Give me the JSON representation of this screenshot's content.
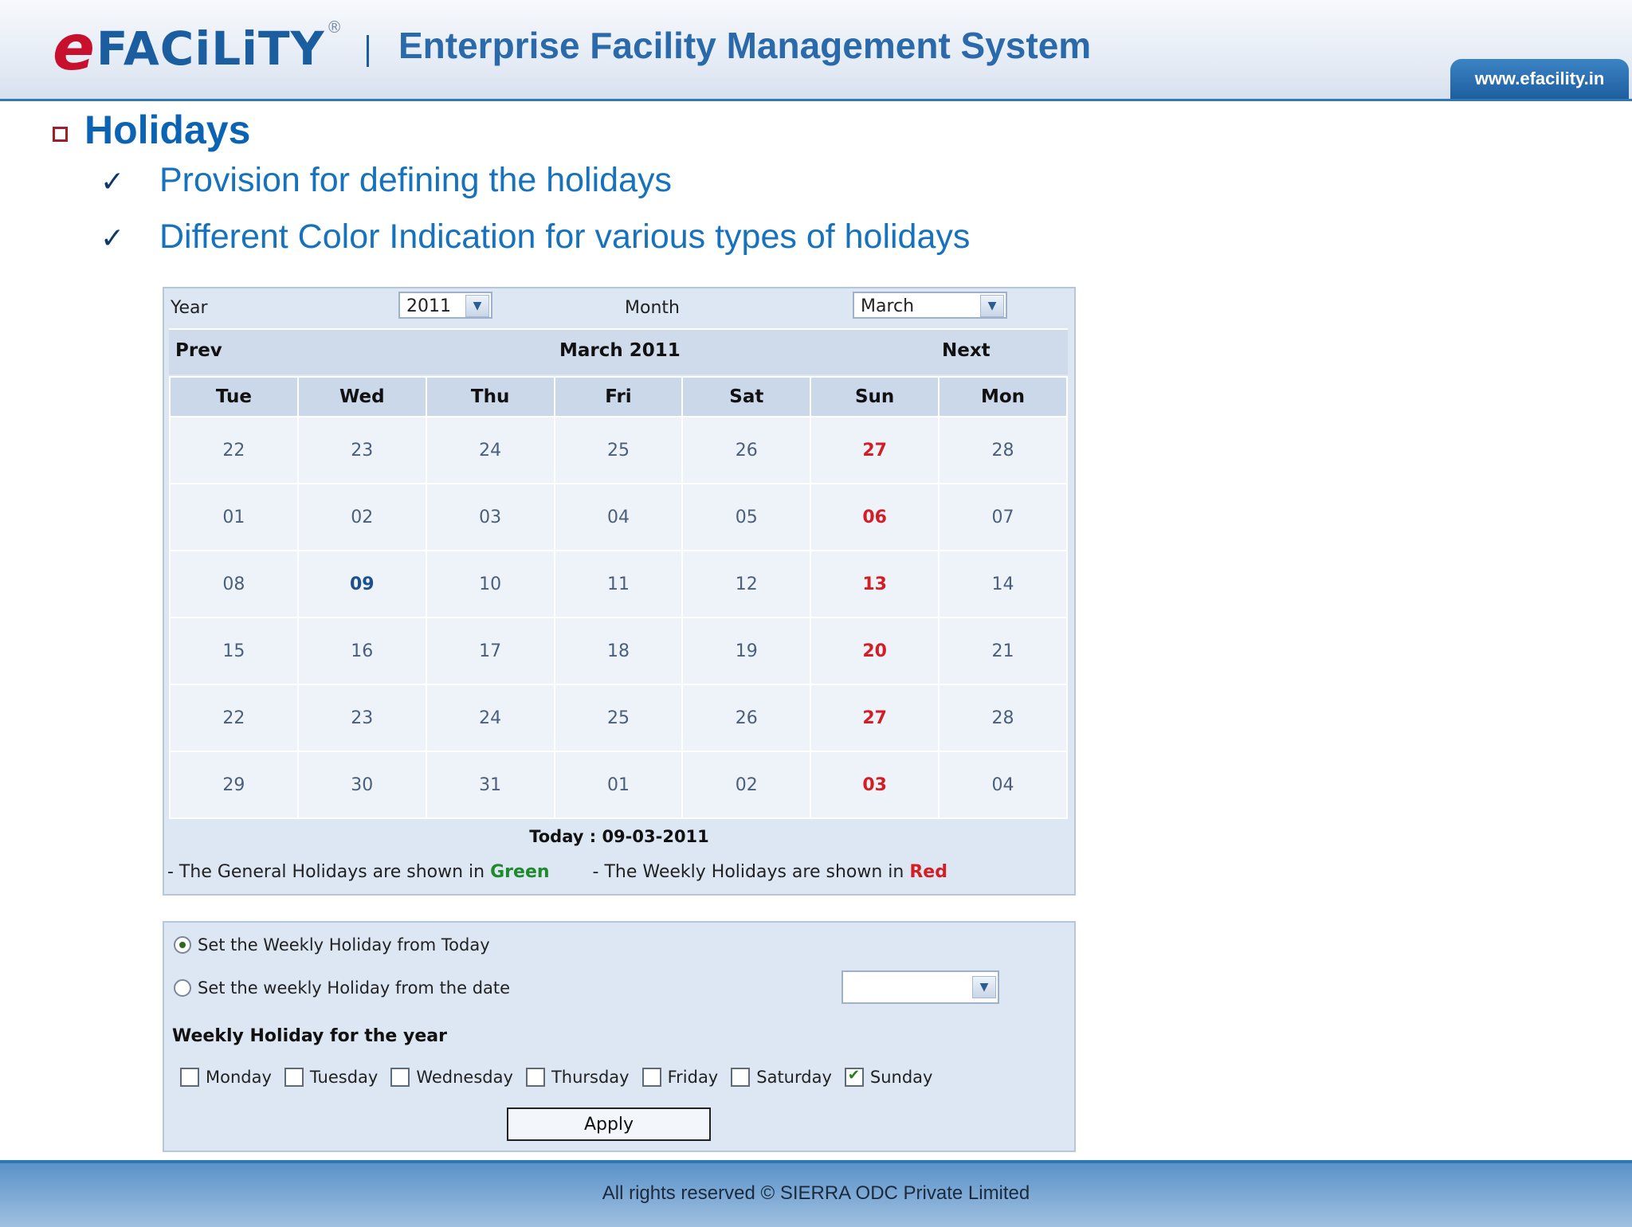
{
  "header": {
    "logo_e": "e",
    "logo_rest": "FACiLiTY",
    "logo_reg": "®",
    "title": "Enterprise Facility Management System",
    "website": "www.efacility.in"
  },
  "content": {
    "heading": "Holidays",
    "check_glyph": "✓",
    "points": [
      "Provision for defining the holidays",
      "Different Color Indication for various types of holidays"
    ]
  },
  "calendar": {
    "year_label": "Year",
    "year_value": "2011",
    "month_label": "Month",
    "month_value": "March",
    "prev": "Prev",
    "title": "March 2011",
    "next": "Next",
    "weekdays": [
      "Tue",
      "Wed",
      "Thu",
      "Fri",
      "Sat",
      "Sun",
      "Mon"
    ],
    "weeks": [
      [
        "22",
        "23",
        "24",
        "25",
        "26",
        "27",
        "28"
      ],
      [
        "01",
        "02",
        "03",
        "04",
        "05",
        "06",
        "07"
      ],
      [
        "08",
        "09",
        "10",
        "11",
        "12",
        "13",
        "14"
      ],
      [
        "15",
        "16",
        "17",
        "18",
        "19",
        "20",
        "21"
      ],
      [
        "22",
        "23",
        "24",
        "25",
        "26",
        "27",
        "28"
      ],
      [
        "29",
        "30",
        "31",
        "01",
        "02",
        "03",
        "04"
      ]
    ],
    "today": "Today : 09-03-2011",
    "legend_general": "- The General Holidays are shown in",
    "legend_general_color": "Green",
    "legend_weekly": "- The Weekly Holidays are shown in",
    "legend_weekly_color": "Red",
    "colors": {
      "weekly_holiday": "#d21f26",
      "general_holiday": "#1f8a2c",
      "today": "#1c4f8c"
    }
  },
  "weekly_settings": {
    "option_today": "Set the Weekly Holiday from Today",
    "option_date": "Set the weekly Holiday from the date",
    "date_value": "",
    "section_title": "Weekly Holiday for the year",
    "days": [
      {
        "label": "Monday",
        "checked": false
      },
      {
        "label": "Tuesday",
        "checked": false
      },
      {
        "label": "Wednesday",
        "checked": false
      },
      {
        "label": "Thursday",
        "checked": false
      },
      {
        "label": "Friday",
        "checked": false
      },
      {
        "label": "Saturday",
        "checked": false
      },
      {
        "label": "Sunday",
        "checked": true
      }
    ],
    "apply": "Apply"
  },
  "footer": {
    "text": "All rights reserved © SIERRA ODC Private Limited"
  }
}
